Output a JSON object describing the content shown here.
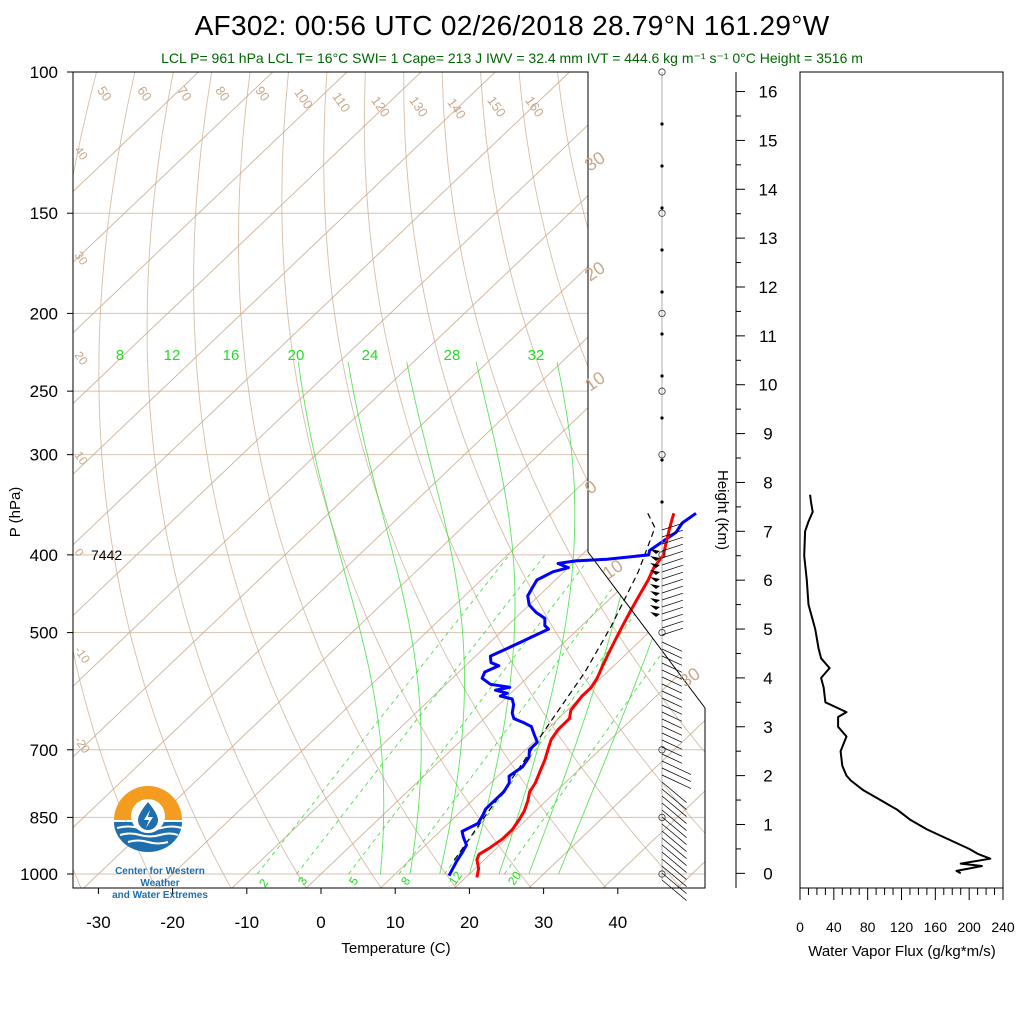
{
  "header": {
    "title": "AF302: 00:56 UTC 02/26/2018  28.79°N 161.29°W",
    "subtitle": "LCL P= 961 hPa  LCL T= 16°C  SWI= 1  Cape= 213 J  IWV = 32.4 mm  IVT = 444.6 kg m⁻¹ s⁻¹  0°C Height = 3516 m"
  },
  "logo": {
    "line1": "Center for Western Weather",
    "line2": "and Water Extremes"
  },
  "colors": {
    "temperature": "#ff0000",
    "dewpoint": "#0000ff",
    "parcel": "#000000",
    "isotherm": "#c8a88a",
    "dry_adiabat": "#c8a88a",
    "mixing_ratio": "#33dd33",
    "moist_adiabat": "#33dd33",
    "wind": "#000000",
    "flux": "#000000"
  },
  "chart_data": [
    {
      "type": "line",
      "subtype": "skew-T log-P",
      "title": "",
      "xlabel": "Temperature (C)",
      "ylabel": "P (hPa)",
      "xlim": [
        -35,
        45
      ],
      "ylim": [
        1050,
        100
      ],
      "yscale": "log",
      "x_ticks": [
        -30,
        -20,
        -10,
        0,
        10,
        20,
        30,
        40
      ],
      "y_ticks": [
        100,
        150,
        200,
        250,
        300,
        400,
        500,
        700,
        850,
        1000
      ],
      "isotherm_labels": [
        50,
        60,
        70,
        80,
        90,
        100,
        110,
        120,
        130,
        140,
        150,
        160
      ],
      "isotherm_left_labels": [
        40,
        30,
        20,
        10,
        0,
        -10,
        -20
      ],
      "isotherm_right_labels": [
        30,
        20,
        10,
        0,
        10,
        30
      ],
      "mixing_ratio_top_labels": [
        8,
        12,
        16,
        20,
        24,
        28,
        32
      ],
      "mixing_ratio_bottom_labels": [
        2,
        3,
        5,
        8,
        12,
        20
      ],
      "annotation": "7442",
      "series": [
        {
          "name": "Temperature",
          "points": [
            [
              21.5,
              1010
            ],
            [
              20.5,
              985
            ],
            [
              19,
              960
            ],
            [
              18.5,
              945
            ],
            [
              19,
              930
            ],
            [
              19.5,
              905
            ],
            [
              19.5,
              880
            ],
            [
              19,
              855
            ],
            [
              18.5,
              835
            ],
            [
              17.5,
              810
            ],
            [
              16.5,
              790
            ],
            [
              16,
              770
            ],
            [
              15,
              745
            ],
            [
              14,
              720
            ],
            [
              13,
              700
            ],
            [
              12,
              680
            ],
            [
              11.5,
              660
            ],
            [
              11.5,
              640
            ],
            [
              10.5,
              625
            ],
            [
              10,
              600
            ],
            [
              10,
              585
            ],
            [
              9.5,
              570
            ],
            [
              8.5,
              550
            ],
            [
              7.5,
              530
            ],
            [
              6.5,
              510
            ],
            [
              5.5,
              490
            ],
            [
              4.5,
              470
            ],
            [
              3.5,
              450
            ],
            [
              2.5,
              430
            ],
            [
              1.5,
              415
            ],
            [
              1,
              400
            ],
            [
              0,
              390
            ],
            [
              -1.5,
              375
            ],
            [
              -2.5,
              365
            ],
            [
              -3.5,
              355
            ]
          ]
        },
        {
          "name": "Dew point",
          "points": [
            [
              17.5,
              1005
            ],
            [
              17,
              985
            ],
            [
              16.5,
              965
            ],
            [
              16,
              940
            ],
            [
              15.5,
              920
            ],
            [
              14,
              900
            ],
            [
              13,
              885
            ],
            [
              14,
              865
            ],
            [
              13.5,
              845
            ],
            [
              13,
              830
            ],
            [
              13,
              810
            ],
            [
              13,
              790
            ],
            [
              12.5,
              770
            ],
            [
              11.5,
              755
            ],
            [
              12,
              735
            ],
            [
              11.5,
              715
            ],
            [
              10.5,
              700
            ],
            [
              10.5,
              685
            ],
            [
              9,
              670
            ],
            [
              7.5,
              655
            ],
            [
              6,
              648
            ],
            [
              4,
              640
            ],
            [
              3,
              630
            ],
            [
              2,
              615
            ],
            [
              1,
              605
            ],
            [
              -1,
              600
            ],
            [
              -0.5,
              595
            ],
            [
              -2.5,
              590
            ],
            [
              -1,
              585
            ],
            [
              -4,
              580
            ],
            [
              -5,
              575
            ],
            [
              -6,
              570
            ],
            [
              -6.5,
              560
            ],
            [
              -5.5,
              550
            ],
            [
              -7,
              545
            ],
            [
              -8,
              535
            ],
            [
              -7,
              525
            ],
            [
              -6,
              515
            ],
            [
              -5,
              505
            ],
            [
              -4,
              495
            ],
            [
              -5,
              490
            ],
            [
              -6,
              480
            ],
            [
              -8,
              472
            ],
            [
              -10,
              462
            ],
            [
              -11.5,
              450
            ],
            [
              -12,
              440
            ],
            [
              -12.5,
              430
            ],
            [
              -11.5,
              420
            ],
            [
              -10,
              415
            ],
            [
              -12,
              410
            ],
            [
              -10,
              407
            ],
            [
              -6,
              405
            ],
            [
              -1,
              400
            ],
            [
              -1.5,
              395
            ],
            [
              -1,
              385
            ],
            [
              -0.5,
              375
            ],
            [
              -1,
              365
            ],
            [
              -0.5,
              355
            ]
          ]
        },
        {
          "name": "Parcel",
          "points": [
            [
              16,
              961
            ],
            [
              14,
              850
            ],
            [
              12,
              750
            ],
            [
              9.5,
              650
            ],
            [
              7,
              560
            ],
            [
              4,
              490
            ],
            [
              0,
              420
            ],
            [
              -4,
              370
            ],
            [
              -7,
              355
            ]
          ]
        }
      ]
    },
    {
      "type": "line",
      "title": "",
      "xlabel": "Water Vapor Flux (g/kg*m/s)",
      "ylabel": "Height (Km)",
      "xlim": [
        0,
        240
      ],
      "ylim": [
        -0.3,
        16.4
      ],
      "x_ticks": [
        0,
        40,
        80,
        120,
        160,
        200,
        240
      ],
      "y_ticks": [
        0,
        1,
        2,
        3,
        4,
        5,
        6,
        7,
        8,
        9,
        10,
        11,
        12,
        13,
        14,
        15,
        16
      ],
      "series": [
        {
          "name": "Water Vapor Flux",
          "points": [
            [
              190,
              0.0
            ],
            [
              185,
              0.05
            ],
            [
              200,
              0.1
            ],
            [
              215,
              0.15
            ],
            [
              190,
              0.2
            ],
            [
              225,
              0.3
            ],
            [
              210,
              0.4
            ],
            [
              200,
              0.5
            ],
            [
              175,
              0.7
            ],
            [
              150,
              0.9
            ],
            [
              130,
              1.1
            ],
            [
              115,
              1.3
            ],
            [
              95,
              1.5
            ],
            [
              75,
              1.7
            ],
            [
              60,
              1.9
            ],
            [
              55,
              2.0
            ],
            [
              50,
              2.2
            ],
            [
              48,
              2.5
            ],
            [
              55,
              2.8
            ],
            [
              45,
              3.0
            ],
            [
              45,
              3.2
            ],
            [
              55,
              3.3
            ],
            [
              30,
              3.5
            ],
            [
              28,
              3.8
            ],
            [
              25,
              4.0
            ],
            [
              35,
              4.2
            ],
            [
              25,
              4.4
            ],
            [
              22,
              4.6
            ],
            [
              18,
              5.0
            ],
            [
              10,
              5.5
            ],
            [
              8,
              6.0
            ],
            [
              5,
              6.5
            ],
            [
              6,
              7.0
            ],
            [
              10,
              7.2
            ],
            [
              15,
              7.4
            ],
            [
              13,
              7.6
            ],
            [
              12,
              7.75
            ]
          ]
        }
      ]
    }
  ]
}
